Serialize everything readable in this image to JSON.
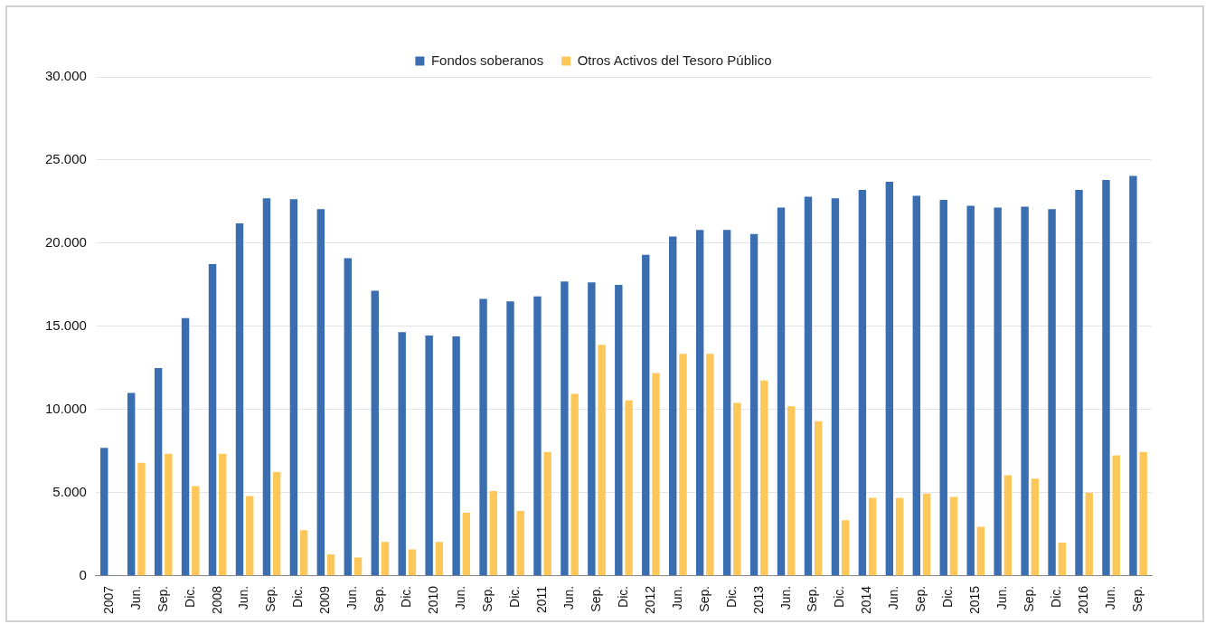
{
  "chart_data": {
    "type": "bar",
    "categories": [
      "2007",
      "Jun.",
      "Sep.",
      "Dic.",
      "2008",
      "Jun.",
      "Sep.",
      "Dic.",
      "2009",
      "Jun.",
      "Sep.",
      "Dic.",
      "2010",
      "Jun.",
      "Sep.",
      "Dic.",
      "2011",
      "Jun.",
      "Sep.",
      "Dic.",
      "2012",
      "Jun.",
      "Sep.",
      "Dic.",
      "2013",
      "Jun.",
      "Sep.",
      "Dic.",
      "2014",
      "Jun.",
      "Sep.",
      "Dic.",
      "2015",
      "Jun.",
      "Sep.",
      "Dic.",
      "2016",
      "Jun.",
      "Sep."
    ],
    "series": [
      {
        "name": "Fondos soberanos",
        "color": "#3a6eb0",
        "values": [
          7700,
          11000,
          12500,
          15500,
          18750,
          21200,
          22700,
          22650,
          22050,
          19100,
          17150,
          14650,
          14450,
          14400,
          16650,
          16500,
          16800,
          17700,
          17650,
          17500,
          19300,
          20400,
          20800,
          20800,
          20550,
          22150,
          22800,
          22700,
          23200,
          23700,
          22850,
          22600,
          22250,
          22150,
          22200,
          22050,
          23200,
          23800,
          24050
        ]
      },
      {
        "name": "Otros Activos del Tesoro Público",
        "color": "#fdc75a",
        "values": [
          null,
          6800,
          7350,
          5400,
          7350,
          4800,
          6250,
          2750,
          1300,
          1100,
          2050,
          1600,
          2050,
          3800,
          5100,
          3900,
          7450,
          10950,
          13900,
          10550,
          12200,
          13350,
          13350,
          10400,
          11750,
          10200,
          9300,
          3350,
          4700,
          4700,
          4950,
          4750,
          2950,
          6050,
          5850,
          2000,
          5000,
          7250,
          7450
        ]
      }
    ],
    "ylim": [
      0,
      30000
    ],
    "yticks": [
      {
        "value": 0,
        "label": "0"
      },
      {
        "value": 5000,
        "label": "5.000"
      },
      {
        "value": 10000,
        "label": "10.000"
      },
      {
        "value": 15000,
        "label": "15.000"
      },
      {
        "value": 20000,
        "label": "20.000"
      },
      {
        "value": 25000,
        "label": "25.000"
      },
      {
        "value": 30000,
        "label": "30.000"
      }
    ],
    "grid": "y",
    "legend": "top"
  }
}
